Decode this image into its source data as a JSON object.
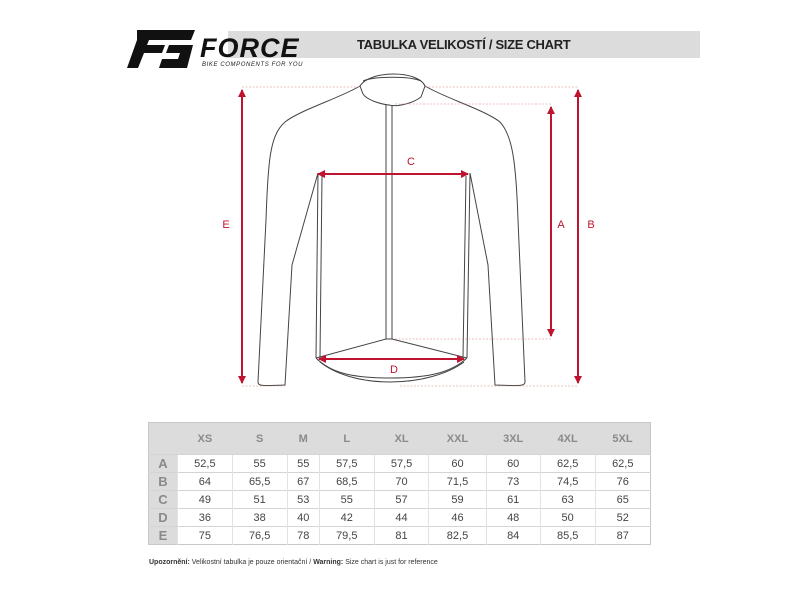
{
  "header": {
    "brand": "FORCE",
    "tagline": "BIKE COMPONENTS FOR YOU",
    "title": "TABULKA VELIKOSTÍ / SIZE CHART"
  },
  "diagram": {
    "labels": {
      "A": "A",
      "B": "B",
      "C": "C",
      "D": "D",
      "E": "E"
    },
    "arrow_color": "#c0132f"
  },
  "table": {
    "sizes": [
      "XS",
      "S",
      "M",
      "L",
      "XL",
      "XXL",
      "3XL",
      "4XL",
      "5XL"
    ],
    "rows": [
      {
        "label": "A",
        "values": [
          "52,5",
          "55",
          "55",
          "57,5",
          "57,5",
          "60",
          "60",
          "62,5",
          "62,5"
        ]
      },
      {
        "label": "B",
        "values": [
          "64",
          "65,5",
          "67",
          "68,5",
          "70",
          "71,5",
          "73",
          "74,5",
          "76"
        ]
      },
      {
        "label": "C",
        "values": [
          "49",
          "51",
          "53",
          "55",
          "57",
          "59",
          "61",
          "63",
          "65"
        ]
      },
      {
        "label": "D",
        "values": [
          "36",
          "38",
          "40",
          "42",
          "44",
          "46",
          "48",
          "50",
          "52"
        ]
      },
      {
        "label": "E",
        "values": [
          "75",
          "76,5",
          "78",
          "79,5",
          "81",
          "82,5",
          "84",
          "85,5",
          "87"
        ]
      }
    ]
  },
  "note": {
    "cz_label": "Upozornění:",
    "cz_text": " Velikostní tabulka je pouze orientační / ",
    "en_label": "Warning:",
    "en_text": " Size chart is just for reference"
  }
}
